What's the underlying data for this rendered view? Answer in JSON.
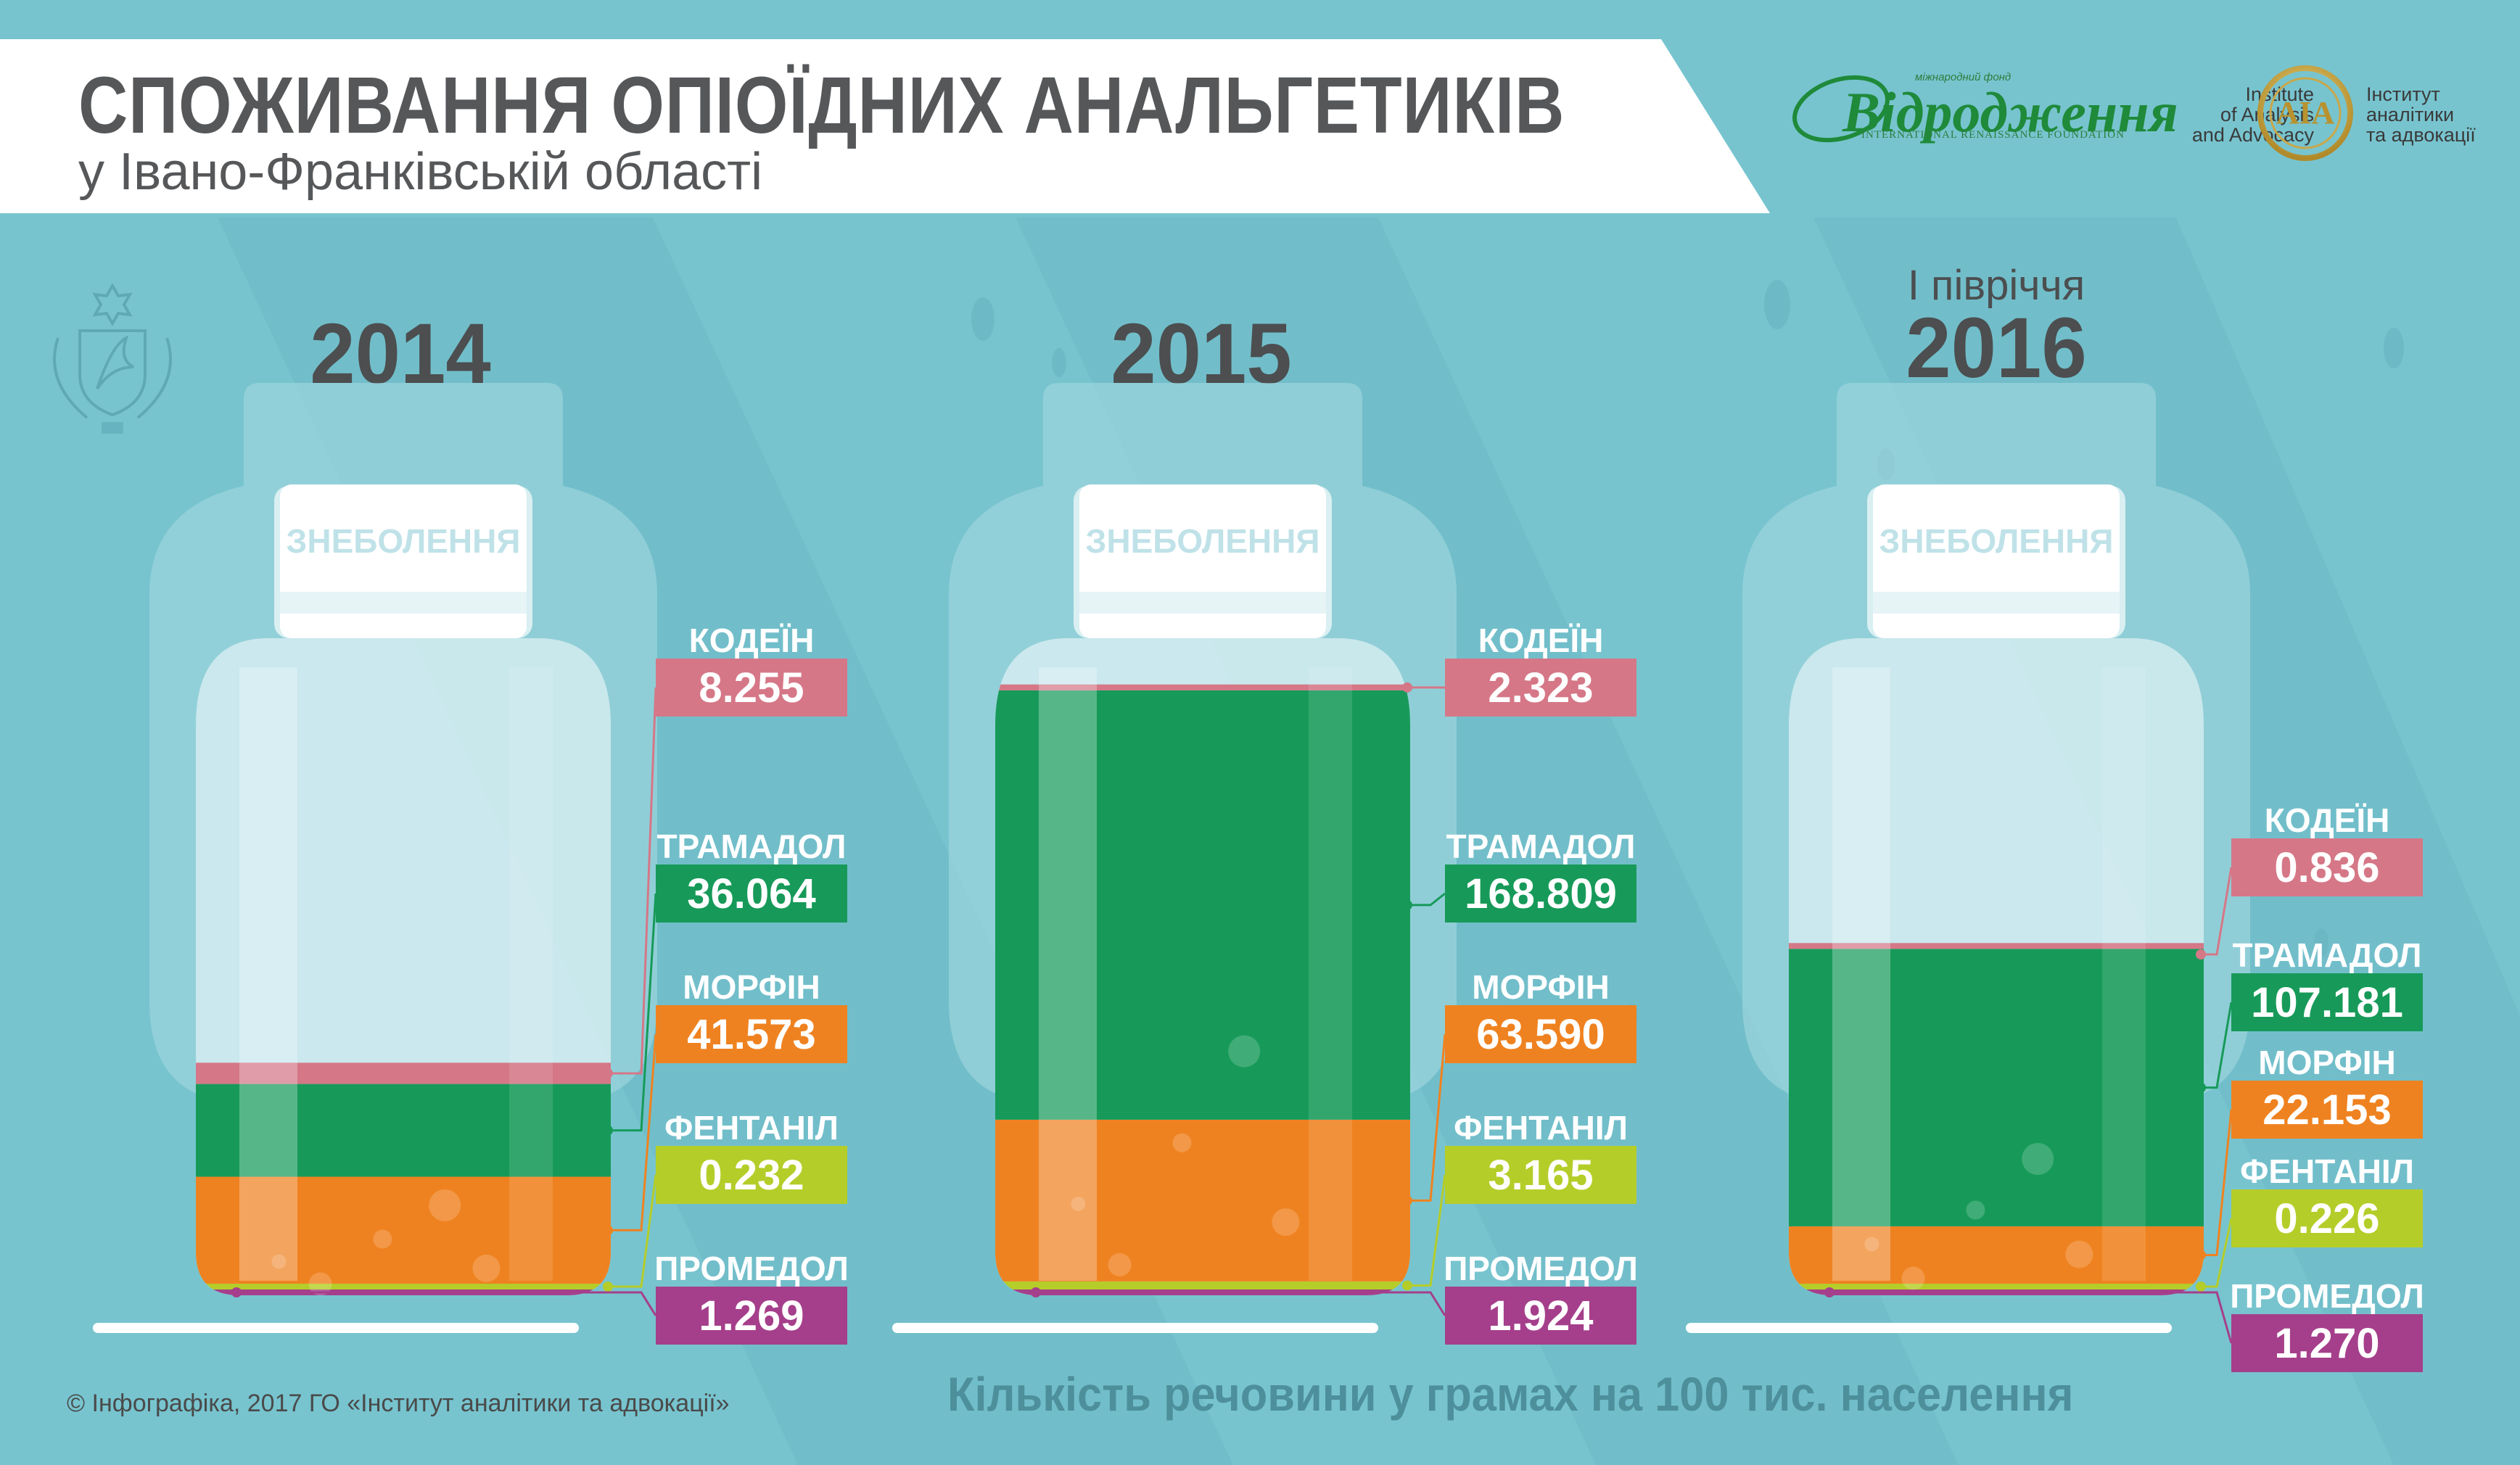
{
  "header": {
    "title": "СПОЖИВАННЯ ОПІОЇДНИХ АНАЛЬГЕТИКІВ",
    "subtitle": "у Івано-Франківській області"
  },
  "logos": {
    "irf_small": "міжнародний фонд",
    "irf_name": "Відродження",
    "irf_en": "INTERNATIONAL RENAISSANCE FOUNDATION",
    "iaa_en": [
      "Institute",
      "of Analysis",
      "and Advocacy"
    ],
    "iaa_mark": "AIA",
    "iaa_ua": [
      "Інститут",
      "аналітики",
      "та адвокації"
    ]
  },
  "footer": {
    "copyright": "© Інфографіка, 2017 ГО «Інститут аналітики та адвокації»",
    "unit_note": "Кількість речовини у грамах на 100 тис. населення"
  },
  "colors": {
    "background": "#77c4cf",
    "codeine": "#d57787",
    "tramadol": "#179a59",
    "morphine": "#ef8220",
    "fentanyl": "#b5cd29",
    "promedol": "#a53f8b"
  },
  "chart_data": {
    "type": "bar",
    "title": "СПОЖИВАННЯ ОПІОЇДНИХ АНАЛЬГЕТИКІВ",
    "subtitle": "у Івано-Франківській області",
    "unit": "Кількість речовини у грамах на 100 тис. населення",
    "bottle_cap_label": "ЗНЕБОЛЕННЯ",
    "categories": [
      "2014",
      "2015",
      "2016"
    ],
    "category_notes": [
      "",
      "",
      "І півріччя"
    ],
    "series": [
      {
        "name": "КОДЕЇН",
        "color": "#d57787",
        "values": [
          "8.255",
          "2.323",
          "0.836"
        ]
      },
      {
        "name": "ТРАМАДОЛ",
        "color": "#179a59",
        "values": [
          "36.064",
          "168.809",
          "107.181"
        ]
      },
      {
        "name": "МОРФІН",
        "color": "#ef8220",
        "values": [
          "41.573",
          "63.590",
          "22.153"
        ]
      },
      {
        "name": "ФЕНТАНІЛ",
        "color": "#b5cd29",
        "values": [
          "0.232",
          "3.165",
          "0.226"
        ]
      },
      {
        "name": "ПРОМЕДОЛ",
        "color": "#a53f8b",
        "values": [
          "1.269",
          "1.924",
          "1.270"
        ]
      }
    ]
  }
}
